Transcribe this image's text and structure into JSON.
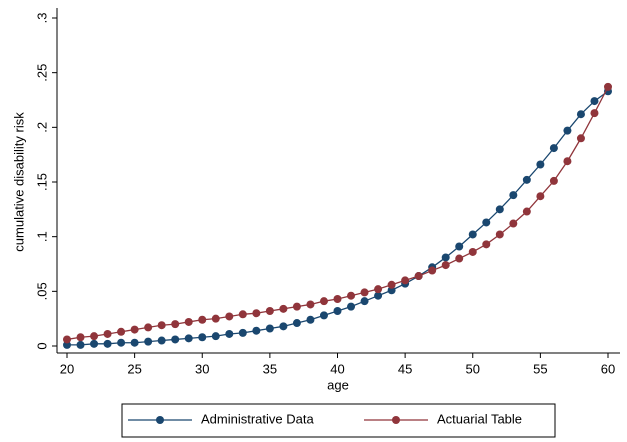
{
  "chart_data": {
    "type": "line",
    "x": [
      20,
      21,
      22,
      23,
      24,
      25,
      26,
      27,
      28,
      29,
      30,
      31,
      32,
      33,
      34,
      35,
      36,
      37,
      38,
      39,
      40,
      41,
      42,
      43,
      44,
      45,
      46,
      47,
      48,
      49,
      50,
      51,
      52,
      53,
      54,
      55,
      56,
      57,
      58,
      59,
      60
    ],
    "series": [
      {
        "name": "Administrative Data",
        "color": "#1a476f",
        "values": [
          0.001,
          0.001,
          0.002,
          0.002,
          0.003,
          0.003,
          0.004,
          0.005,
          0.006,
          0.007,
          0.008,
          0.009,
          0.011,
          0.012,
          0.014,
          0.016,
          0.018,
          0.021,
          0.024,
          0.028,
          0.032,
          0.036,
          0.041,
          0.046,
          0.051,
          0.057,
          0.064,
          0.072,
          0.081,
          0.091,
          0.102,
          0.113,
          0.125,
          0.138,
          0.152,
          0.166,
          0.181,
          0.197,
          0.212,
          0.224,
          0.233
        ]
      },
      {
        "name": "Actuarial Table",
        "color": "#90353b",
        "values": [
          0.006,
          0.008,
          0.009,
          0.011,
          0.013,
          0.015,
          0.017,
          0.019,
          0.02,
          0.022,
          0.024,
          0.025,
          0.027,
          0.029,
          0.03,
          0.032,
          0.034,
          0.036,
          0.038,
          0.041,
          0.043,
          0.046,
          0.049,
          0.052,
          0.056,
          0.06,
          0.064,
          0.069,
          0.074,
          0.08,
          0.086,
          0.093,
          0.102,
          0.112,
          0.123,
          0.137,
          0.151,
          0.169,
          0.19,
          0.213,
          0.237
        ]
      }
    ],
    "x_label": "age",
    "y_label": "cumulative disability risk",
    "xlim": [
      20,
      60
    ],
    "xticks": [
      20,
      25,
      30,
      35,
      40,
      45,
      50,
      55,
      60
    ],
    "ylim": [
      0,
      0.3
    ],
    "yticks": [
      0,
      {
        "value": 0.05,
        "label": ".05"
      },
      {
        "value": 0.1,
        "label": ".1"
      },
      {
        "value": 0.15,
        "label": ".15"
      },
      {
        "value": 0.2,
        "label": ".2"
      },
      {
        "value": 0.25,
        "label": ".25"
      },
      {
        "value": 0.3,
        "label": ".3"
      }
    ],
    "grid": false,
    "legend": "bottom"
  }
}
